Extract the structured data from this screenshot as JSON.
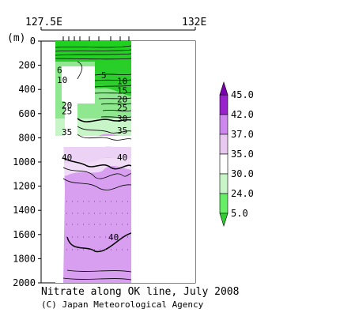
{
  "chart_data": {
    "type": "contour",
    "title": "Nitrate along OK line, July 2008",
    "credit": "(C) Japan Meteorological Agency",
    "x_tick_labels": [
      "127.5E",
      "132E"
    ],
    "y_unit_label": "(m)",
    "y_ticks": [
      0,
      200,
      400,
      600,
      800,
      1000,
      1200,
      1400,
      1600,
      1800,
      2000
    ],
    "ylim": [
      2000,
      0
    ],
    "y_axis": "depth",
    "contour_labels": [
      {
        "text": "5",
        "depth": 280,
        "near": "upper-right"
      },
      {
        "text": "6",
        "depth": 240,
        "near": "upper-left"
      },
      {
        "text": "10",
        "depth": 320,
        "near": "upper-left"
      },
      {
        "text": "10",
        "depth": 330,
        "near": "right"
      },
      {
        "text": "15",
        "depth": 410,
        "near": "right"
      },
      {
        "text": "20",
        "depth": 480,
        "near": "right"
      },
      {
        "text": "20",
        "depth": 530,
        "near": "left"
      },
      {
        "text": "25",
        "depth": 550,
        "near": "right"
      },
      {
        "text": "25",
        "depth": 580,
        "near": "left"
      },
      {
        "text": "30",
        "depth": 640,
        "near": "right"
      },
      {
        "text": "35",
        "depth": 740,
        "near": "right"
      },
      {
        "text": "35",
        "depth": 750,
        "near": "left"
      },
      {
        "text": "40",
        "depth": 960,
        "near": "left"
      },
      {
        "text": "40",
        "depth": 960,
        "near": "right"
      },
      {
        "text": "40",
        "depth": 1620,
        "near": "center"
      }
    ],
    "colorbar": {
      "levels": [
        "5.0",
        "24.0",
        "30.0",
        "35.0",
        "37.0",
        "42.0",
        "45.0"
      ],
      "colors": [
        "#33cc33",
        "#66ee66",
        "#c8f5c8",
        "#ffffff",
        "#e8c8f0",
        "#cc88ee",
        "#9922cc",
        "#7a00b0"
      ]
    }
  }
}
